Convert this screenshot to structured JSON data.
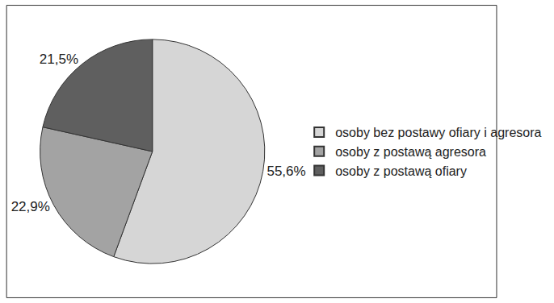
{
  "chart_data": {
    "type": "pie",
    "categories": [
      "osoby bez postawy ofiary i agresora",
      "osoby z postawą agresora",
      "osoby z postawą ofiary"
    ],
    "values": [
      55.6,
      22.9,
      21.5
    ],
    "value_labels": [
      "55,6%",
      "22,9%",
      "21,5%"
    ],
    "colors": [
      "#d6d6d6",
      "#a3a3a3",
      "#5f5f5f"
    ],
    "data_labels": true,
    "legend": "right"
  }
}
